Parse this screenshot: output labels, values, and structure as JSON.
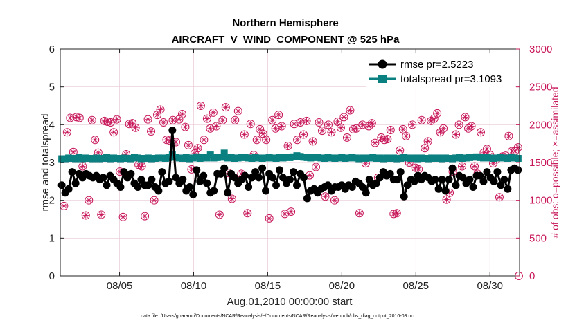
{
  "chart_data": {
    "type": "line",
    "title": "Northern Hemisphere",
    "subtitle": "AIRCRAFT_V_WIND_COMPONENT @ 525 hPa",
    "xlabel": "Aug.01,2010 00:00:00 start",
    "ylabel": "rmse and totalspread",
    "y2label": "# of obs: o=possible; ×=assimilated",
    "xlim": [
      1.0,
      32.0
    ],
    "ylim": [
      0,
      6
    ],
    "y2lim": [
      0,
      3000
    ],
    "x_ticks": [
      5,
      10,
      15,
      20,
      25,
      30
    ],
    "x_tick_labels": [
      "08/05",
      "08/10",
      "08/15",
      "08/20",
      "08/25",
      "08/30"
    ],
    "y_ticks": [
      "0",
      "1",
      "2",
      "3",
      "4",
      "5",
      "6"
    ],
    "y2_ticks": [
      "0",
      "500",
      "1000",
      "1500",
      "2000",
      "2500",
      "3000"
    ],
    "grid": true,
    "legend_position": "top-right",
    "footer": "data file: /Users/gharamti/Documents/NCAR/Reanalysis/~/Documents/NCAR/Reanalysis/webpub/obs_diag_output_2010-08.nc",
    "colors": {
      "rmse": "#000000",
      "totalspread": "#0a8080",
      "obs": "#c8175a",
      "grid": "#e8c8d4"
    },
    "series": [
      {
        "name": "rmse",
        "legend_label": "rmse pr=2.5223",
        "values": [
          2.4,
          2.2,
          2.3,
          2.75,
          2.45,
          2.7,
          2.6,
          2.7,
          2.65,
          2.6,
          2.65,
          2.55,
          2.6,
          2.4,
          2.65,
          2.55,
          2.45,
          2.35,
          2.75,
          2.6,
          2.7,
          2.45,
          2.35,
          2.55,
          2.4,
          2.4,
          2.55,
          2.35,
          2.25,
          2.75,
          2.45,
          2.5,
          3.85,
          2.6,
          2.45,
          2.55,
          2.25,
          2.35,
          2.15,
          2.8,
          2.5,
          2.65,
          2.45,
          2.2,
          2.25,
          2.7,
          2.7,
          2.85,
          2.2,
          2.7,
          2.6,
          2.45,
          2.55,
          2.65,
          2.35,
          2.6,
          2.75,
          2.6,
          2.85,
          2.25,
          2.7,
          2.6,
          2.4,
          2.8,
          2.6,
          2.45,
          2.55,
          2.75,
          2.4,
          2.7,
          2.6,
          2.05,
          2.25,
          2.3,
          2.2,
          2.3,
          2.35,
          2.4,
          2.25,
          2.35,
          2.35,
          2.4,
          2.3,
          2.4,
          2.35,
          2.5,
          2.45,
          2.35,
          2.2,
          2.55,
          2.4,
          2.45,
          2.6,
          2.75,
          2.65,
          2.7,
          2.55,
          2.55,
          2.75,
          2.1,
          2.4,
          2.55,
          2.5,
          2.65,
          2.55,
          2.65,
          2.6,
          2.5,
          2.55,
          2.3,
          2.55,
          2.25,
          2.55,
          2.85,
          2.4,
          2.65,
          2.6,
          2.45,
          2.55,
          2.35,
          2.65,
          2.65,
          2.5,
          2.75,
          2.6,
          2.5,
          2.75,
          2.4,
          2.55,
          2.3,
          2.8,
          2.85,
          2.8
        ]
      },
      {
        "name": "totalspread",
        "legend_label": "totalspread pr=3.1093",
        "values": [
          3.1,
          3.1,
          3.12,
          3.11,
          3.1,
          3.13,
          3.1,
          3.12,
          3.11,
          3.1,
          3.12,
          3.1,
          3.11,
          3.13,
          3.1,
          3.12,
          3.11,
          3.1,
          3.12,
          3.11,
          3.1,
          3.13,
          3.12,
          3.1,
          3.11,
          3.12,
          3.1,
          3.11,
          3.12,
          3.12,
          3.11,
          3.13,
          3.2,
          3.14,
          3.12,
          3.11,
          3.13,
          3.1,
          3.12,
          3.15,
          3.11,
          3.13,
          3.12,
          3.2,
          3.12,
          3.13,
          3.14,
          3.25,
          3.12,
          3.13,
          3.11,
          3.12,
          3.14,
          3.13,
          3.12,
          3.11,
          3.13,
          3.12,
          3.11,
          3.12,
          3.13,
          3.12,
          3.11,
          3.13,
          3.12,
          3.14,
          3.13,
          3.15,
          3.18,
          3.16,
          3.14,
          3.13,
          3.12,
          3.14,
          3.13,
          3.12,
          3.11,
          3.13,
          3.12,
          3.11,
          3.12,
          3.13,
          3.11,
          3.12,
          3.13,
          3.12,
          3.1,
          3.12,
          3.11,
          3.12,
          3.13,
          3.11,
          3.12,
          3.1,
          3.12,
          3.11,
          3.12,
          3.1,
          3.11,
          3.13,
          3.12,
          3.11,
          3.12,
          3.1,
          3.12,
          3.11,
          3.1,
          3.12,
          3.11,
          3.12,
          3.1,
          3.12,
          3.11,
          3.1,
          3.12,
          3.13,
          3.11,
          3.12,
          3.13,
          3.14,
          3.15,
          3.13,
          3.12,
          3.14,
          3.12,
          3.11,
          3.12,
          3.13,
          3.12,
          3.11,
          3.13,
          3.12,
          3.11
        ]
      },
      {
        "name": "obs_possible",
        "axis": "right",
        "values": [
          925,
          1900,
          2090,
          1640,
          2100,
          2090,
          1450,
          800,
          1000,
          2060,
          1800,
          1630,
          810,
          2050,
          2040,
          2030,
          1900,
          2070,
          1380,
          780,
          1610,
          2010,
          2020,
          1960,
          1470,
          1450,
          790,
          2070,
          1910,
          1000,
          2130,
          2200,
          2030,
          1800,
          1790,
          2060,
          1770,
          2070,
          2140,
          1970,
          1730,
          1410,
          1620,
          1690,
          2250,
          1800,
          2080,
          1950,
          2160,
          1980,
          810,
          2060,
          2230,
          1360,
          1020,
          2060,
          2180,
          1350,
          1870,
          830,
          2010,
          1600,
          1800,
          1940,
          1880,
          1800,
          760,
          2060,
          1950,
          2130,
          1980,
          820,
          1720,
          850,
          2010,
          1800,
          2030,
          1870,
          2050,
          1330,
          1780,
          1440,
          2030,
          1920,
          1050,
          2000,
          1900,
          1000,
          2040,
          1960,
          2100,
          1830,
          2190,
          1940,
          1950,
          830,
          2000,
          1490,
          1980,
          2020,
          1760,
          1300,
          1830,
          1800,
          1810,
          1930,
          820,
          830,
          1660,
          1940,
          1850,
          1500,
          2000,
          1430,
          1410,
          2060,
          1690,
          1780,
          2050,
          2080,
          2150,
          1900,
          1950,
          1010,
          1100,
          1380,
          1870,
          2000,
          1450,
          2100,
          1950,
          1980,
          1450,
          1350,
          1900,
          1630,
          1680,
          1600,
          1490,
          1540,
          1040,
          1580,
          1590,
          1850,
          1650,
          1650,
          1700
        ]
      }
    ]
  }
}
